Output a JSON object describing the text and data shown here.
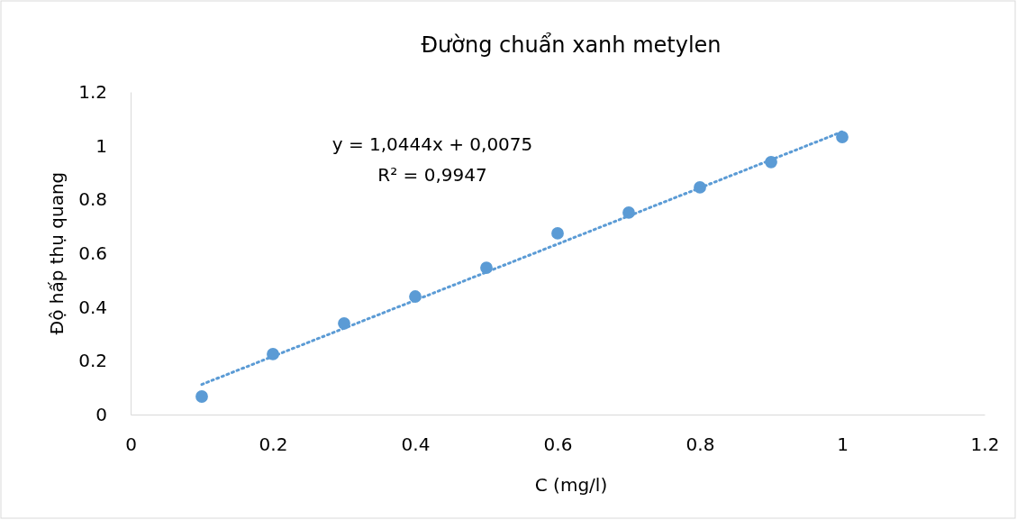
{
  "chart_data": {
    "type": "scatter",
    "title": "Đường chuẩn xanh metylen",
    "xlabel": "C (mg/l)",
    "ylabel": "Độ hấp thụ quang",
    "xlim": [
      0,
      1.2
    ],
    "xticks": [
      0,
      0.2,
      0.4,
      0.6,
      0.8,
      1,
      1.2
    ],
    "ylim": [
      0,
      1.2
    ],
    "yticks": [
      0,
      0.2,
      0.4,
      0.6,
      0.8,
      1,
      1.2
    ],
    "grid": false,
    "marker": "circle",
    "annotations": [
      "y = 1,0444x + 0,0075",
      "R² = 0,9947"
    ],
    "series": [
      {
        "color": "#5b9bd5",
        "x": [
          0.1,
          0.2,
          0.3,
          0.4,
          0.5,
          0.6,
          0.7,
          0.8,
          0.9,
          1.0
        ],
        "values": [
          0.067,
          0.225,
          0.339,
          0.439,
          0.546,
          0.674,
          0.751,
          0.845,
          0.939,
          1.032
        ]
      },
      {
        "type": "line",
        "color": "#5b9bd5",
        "line_style": "dotted",
        "marker": "none",
        "x": [
          0.1,
          1.0
        ],
        "values": [
          0.112,
          1.052
        ]
      }
    ]
  }
}
